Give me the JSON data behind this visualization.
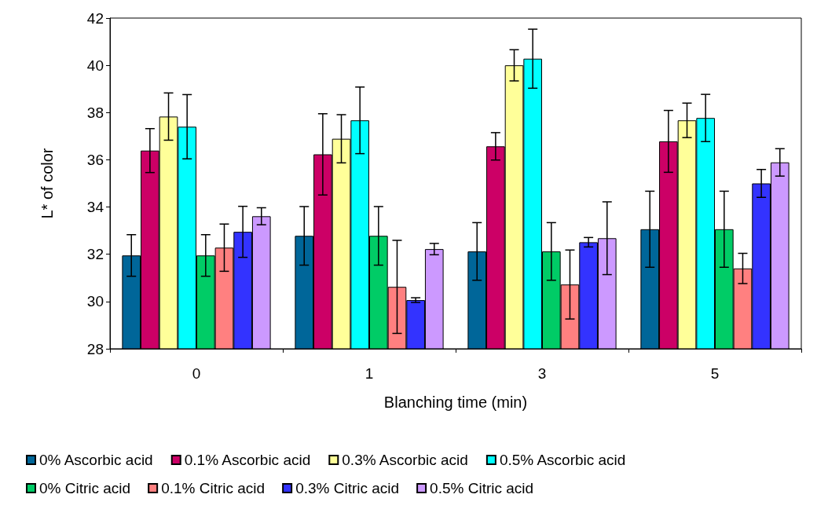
{
  "chart_data": {
    "type": "bar",
    "xlabel": "Blanching time (min)",
    "ylabel": "L* of color",
    "categories": [
      "0",
      "1",
      "3",
      "5"
    ],
    "ylim": [
      28,
      42
    ],
    "yticks": [
      28,
      30,
      32,
      34,
      36,
      38,
      40,
      42
    ],
    "grid": false,
    "legend": "bottom",
    "series": [
      {
        "name": "0% Ascorbic acid",
        "color": "#006699",
        "values": [
          31.95,
          32.78,
          32.12,
          33.06
        ],
        "errors": [
          0.88,
          1.24,
          1.22,
          1.61
        ]
      },
      {
        "name": "0.1% Ascorbic acid",
        "color": "#cc0066",
        "values": [
          36.39,
          36.23,
          36.57,
          36.78
        ],
        "errors": [
          0.93,
          1.72,
          0.58,
          1.31
        ]
      },
      {
        "name": "0.3% Ascorbic acid",
        "color": "#ffff99",
        "values": [
          37.83,
          36.89,
          40.0,
          37.67
        ],
        "errors": [
          1.0,
          1.02,
          0.66,
          0.73
        ]
      },
      {
        "name": "0.5% Ascorbic acid",
        "color": "#00ffff",
        "values": [
          37.4,
          37.67,
          40.28,
          37.77
        ],
        "errors": [
          1.36,
          1.41,
          1.25,
          1.0
        ]
      },
      {
        "name": "0% Citric acid",
        "color": "#00cc66",
        "values": [
          31.95,
          32.78,
          32.12,
          33.06
        ],
        "errors": [
          0.88,
          1.24,
          1.22,
          1.61
        ]
      },
      {
        "name": "0.1% Citric acid",
        "color": "#ff8080",
        "values": [
          32.28,
          30.62,
          30.72,
          31.4
        ],
        "errors": [
          1.0,
          1.97,
          1.46,
          0.64
        ]
      },
      {
        "name": "0.3% Citric acid",
        "color": "#3333ff",
        "values": [
          32.95,
          30.06,
          32.51,
          35.0
        ],
        "errors": [
          1.08,
          0.1,
          0.2,
          0.59
        ]
      },
      {
        "name": "0.5% Citric acid",
        "color": "#cc99ff",
        "values": [
          33.61,
          32.22,
          32.68,
          35.89
        ],
        "errors": [
          0.36,
          0.24,
          1.54,
          0.58
        ]
      }
    ]
  }
}
